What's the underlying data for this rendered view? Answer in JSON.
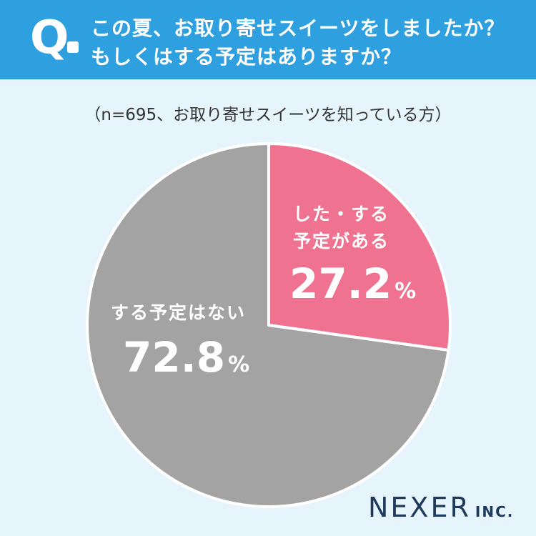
{
  "header": {
    "q_mark": "Q",
    "question_line1": "この夏、お取り寄せスイーツをしましたか？",
    "question_line2": "もしくはする予定はありますか？"
  },
  "subtitle": "（n=695、お取り寄せスイーツを知っている方）",
  "colors": {
    "header_bg": "#2ea0df",
    "page_bg": "#e6f4fc",
    "slice_yes": "#ef7390",
    "slice_no": "#a3a3a3"
  },
  "chart_data": {
    "type": "pie",
    "n": 695,
    "slices": [
      {
        "label_line1": "した・する",
        "label_line2": "予定がある",
        "value": 27.2,
        "value_text": "27.2",
        "unit": "%",
        "color": "#ef7390"
      },
      {
        "label_line1": "する予定はない",
        "label_line2": "",
        "value": 72.8,
        "value_text": "72.8",
        "unit": "%",
        "color": "#a3a3a3"
      }
    ],
    "start_angle_deg": 0,
    "direction": "clockwise"
  },
  "logo": {
    "main": "NEXER",
    "suffix": "INC."
  }
}
